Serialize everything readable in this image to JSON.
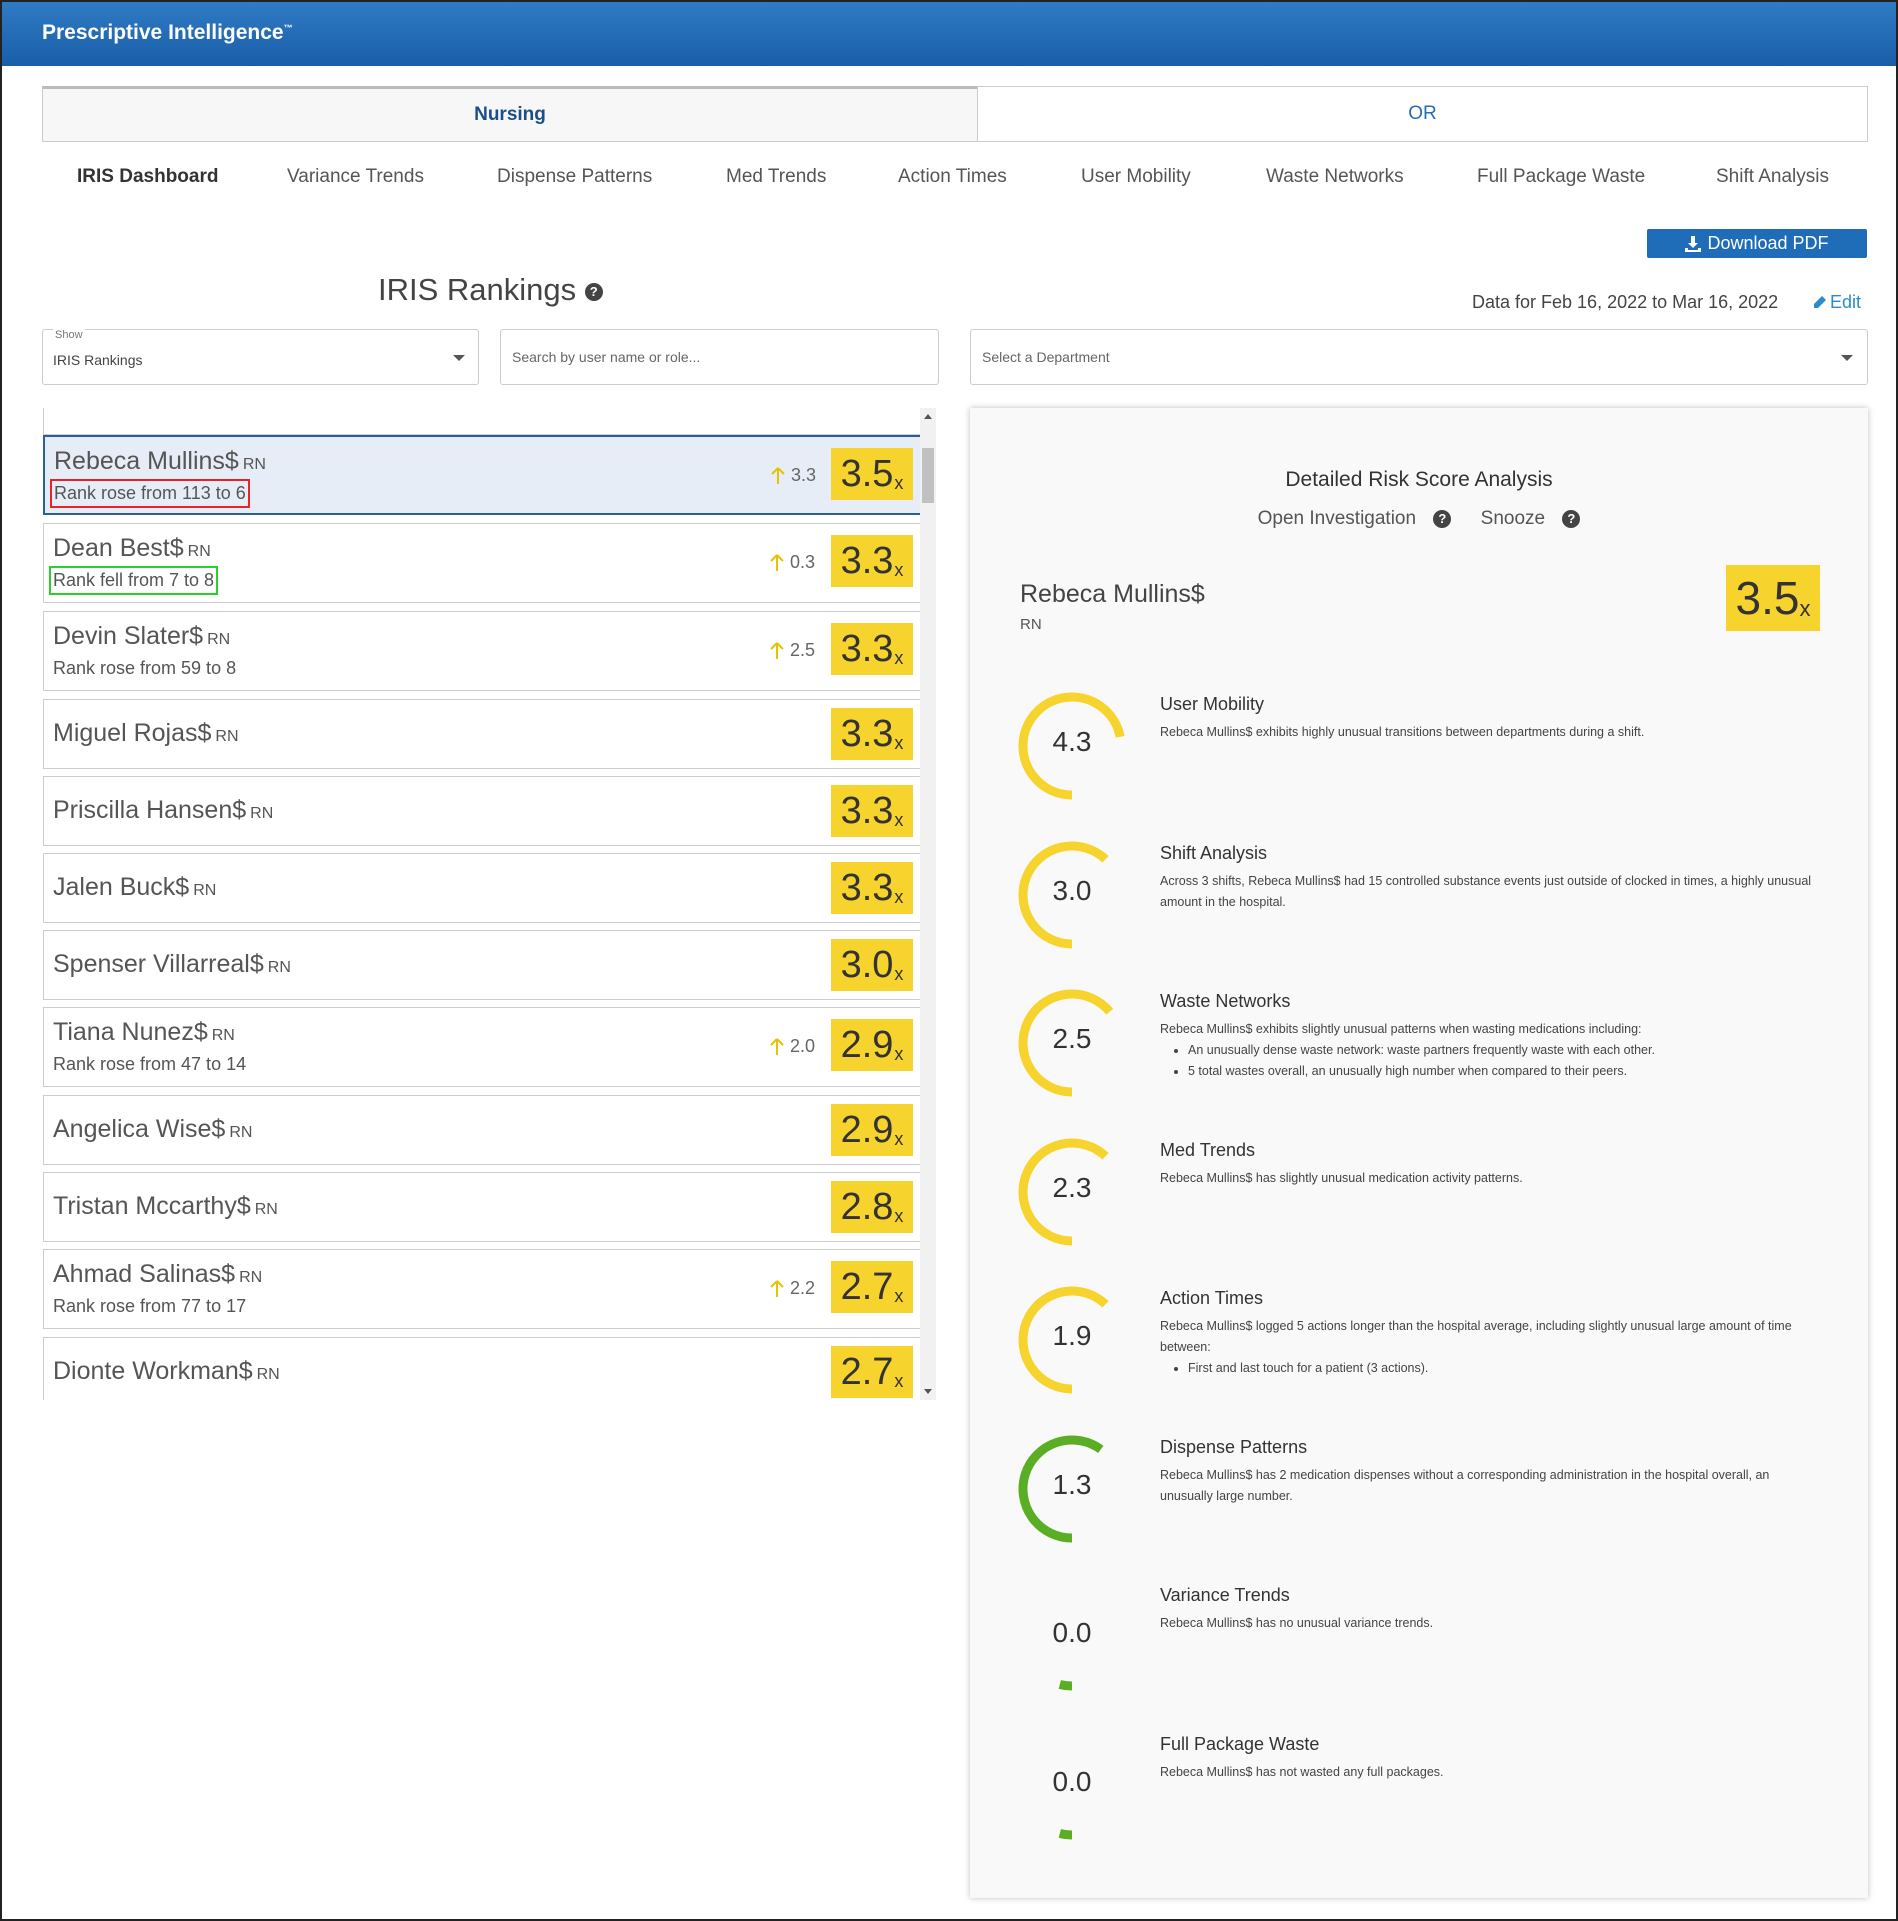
{
  "app": {
    "brand": "Prescriptive Intelligence",
    "tm": "™"
  },
  "tabs": [
    "Nursing",
    "OR"
  ],
  "subnav": [
    "IRIS Dashboard",
    "Variance Trends",
    "Dispense Patterns",
    "Med Trends",
    "Action Times",
    "User Mobility",
    "Waste Networks",
    "Full Package Waste",
    "Shift Analysis"
  ],
  "download_label": "Download PDF",
  "page_title": "IRIS Rankings",
  "date_range": "Data for Feb 16, 2022 to Mar 16, 2022",
  "edit_label": "Edit",
  "filters": {
    "show_label": "Show",
    "show_value": "IRIS Rankings",
    "search_placeholder": "Search by user name or role...",
    "department_placeholder": "Select a Department"
  },
  "rankings": [
    {
      "name": "Rebeca Mullins$",
      "role": "RN",
      "rank_change": "Rank rose from 113 to 6",
      "delta": "3.3",
      "score": "3.5",
      "selected": true
    },
    {
      "name": "Dean Best$",
      "role": "RN",
      "rank_change": "Rank fell from 7 to 8",
      "delta": "0.3",
      "score": "3.3"
    },
    {
      "name": "Devin Slater$",
      "role": "RN",
      "rank_change": "Rank rose from 59 to 8",
      "delta": "2.5",
      "score": "3.3"
    },
    {
      "name": "Miguel Rojas$",
      "role": "RN",
      "score": "3.3"
    },
    {
      "name": "Priscilla Hansen$",
      "role": "RN",
      "score": "3.3"
    },
    {
      "name": "Jalen Buck$",
      "role": "RN",
      "score": "3.3"
    },
    {
      "name": "Spenser Villarreal$",
      "role": "RN",
      "score": "3.0"
    },
    {
      "name": "Tiana Nunez$",
      "role": "RN",
      "rank_change": "Rank rose from 47 to 14",
      "delta": "2.0",
      "score": "2.9"
    },
    {
      "name": "Angelica Wise$",
      "role": "RN",
      "score": "2.9"
    },
    {
      "name": "Tristan Mccarthy$",
      "role": "RN",
      "score": "2.8"
    },
    {
      "name": "Ahmad Salinas$",
      "role": "RN",
      "rank_change": "Rank rose from 77 to 17",
      "delta": "2.2",
      "score": "2.7"
    },
    {
      "name": "Dionte Workman$",
      "role": "RN",
      "score": "2.7"
    }
  ],
  "score_suffix": "x",
  "detail": {
    "title": "Detailed Risk Score Analysis",
    "open_investigation": "Open Investigation",
    "snooze": "Snooze",
    "name": "Rebeca Mullins$",
    "role": "RN",
    "score": "3.5",
    "metrics": [
      {
        "title": "User Mobility",
        "value": "4.3",
        "level": 0.72,
        "color": "#f6d32d",
        "desc": "Rebeca Mullins$ exhibits highly unusual transitions between departments during a shift.",
        "bullets": []
      },
      {
        "title": "Shift Analysis",
        "value": "3.0",
        "level": 0.62,
        "color": "#f6d32d",
        "desc": "Across 3 shifts, Rebeca Mullins$ had 15 controlled substance events just outside of clocked in times, a highly unusual amount in the hospital.",
        "bullets": []
      },
      {
        "title": "Waste Networks",
        "value": "2.5",
        "level": 0.64,
        "color": "#f6d32d",
        "desc": "Rebeca Mullins$ exhibits slightly unusual patterns when wasting medications including:",
        "bullets": [
          "An unusually dense waste network: waste partners frequently waste with each other.",
          "5 total wastes overall, an unusually high number when compared to their peers."
        ]
      },
      {
        "title": "Med Trends",
        "value": "2.3",
        "level": 0.62,
        "color": "#f6d32d",
        "desc": "Rebeca Mullins$ has slightly unusual medication activity patterns.",
        "bullets": []
      },
      {
        "title": "Action Times",
        "value": "1.9",
        "level": 0.62,
        "color": "#f6d32d",
        "desc": "Rebeca Mullins$ logged 5 actions longer than the hospital average, including slightly unusual large amount of time between:",
        "bullets": [
          "First and last touch for a patient (3 actions)."
        ]
      },
      {
        "title": "Dispense Patterns",
        "value": "1.3",
        "level": 0.6,
        "color": "#5aae24",
        "desc": "Rebeca Mullins$ has 2 medication dispenses without a corresponding administration in the hospital overall, an unusually large number.",
        "bullets": []
      },
      {
        "title": "Variance Trends",
        "value": "0.0",
        "level": 0.03,
        "color": "#5aae24",
        "desc": "Rebeca Mullins$ has no unusual variance trends.",
        "bullets": []
      },
      {
        "title": "Full Package Waste",
        "value": "0.0",
        "level": 0.03,
        "color": "#5aae24",
        "desc": "Rebeca Mullins$ has not wasted any full packages.",
        "bullets": []
      }
    ]
  }
}
